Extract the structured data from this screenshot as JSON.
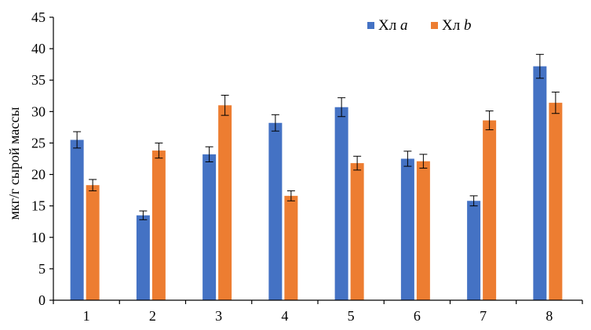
{
  "chart_data": {
    "type": "bar",
    "categories": [
      "1",
      "2",
      "3",
      "4",
      "5",
      "6",
      "7",
      "8"
    ],
    "series": [
      {
        "name_main": "Хл",
        "name_sub": "a",
        "color": "#4472C4",
        "values": [
          25.5,
          13.5,
          23.2,
          28.2,
          30.7,
          22.5,
          15.8,
          37.2
        ],
        "errors": [
          1.3,
          0.7,
          1.2,
          1.3,
          1.5,
          1.2,
          0.8,
          1.9
        ]
      },
      {
        "name_main": "Хл",
        "name_sub": "b",
        "color": "#ED7D31",
        "values": [
          18.3,
          23.8,
          31.0,
          16.6,
          21.8,
          22.1,
          28.6,
          31.4
        ],
        "errors": [
          0.9,
          1.2,
          1.6,
          0.8,
          1.1,
          1.1,
          1.5,
          1.7
        ]
      }
    ],
    "ylabel": "мкг/г сырой массы",
    "ylim": [
      0,
      45
    ],
    "yticks": [
      "0",
      "5",
      "10",
      "15",
      "20",
      "25",
      "30",
      "35",
      "40",
      "45"
    ],
    "grid": false,
    "legend_position": "top-right"
  }
}
